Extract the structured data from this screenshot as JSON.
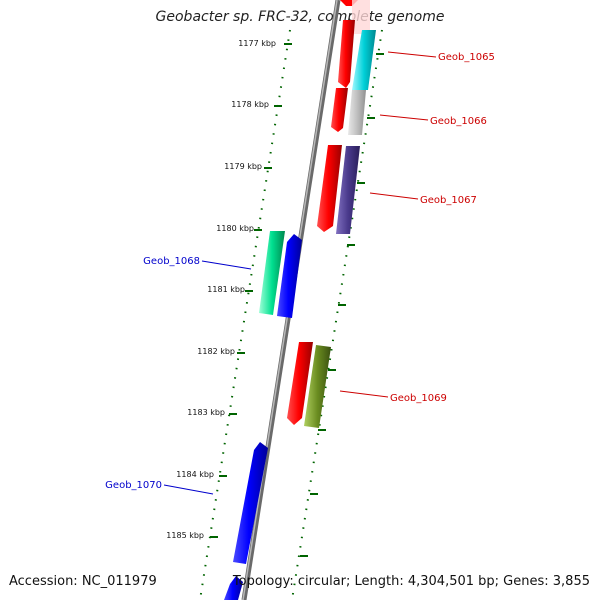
{
  "title": "Geobacter sp. FRC-32, complete genome",
  "footer": {
    "accession": "Accession: NC_011979",
    "topology": "Topology: circular; Length: 4,304,501 bp; Genes: 3,855"
  },
  "ticks": [
    "1177 kbp",
    "1178 kbp",
    "1179 kbp",
    "1180 kbp",
    "1181 kbp",
    "1182 kbp",
    "1183 kbp",
    "1184 kbp",
    "1185 kbp"
  ],
  "genes": [
    {
      "label": "Geob_1065",
      "color": "#cc0000",
      "body": "#00c8d0"
    },
    {
      "label": "Geob_1066",
      "color": "#cc0000",
      "body": "#b8b8b8"
    },
    {
      "label": "Geob_1067",
      "color": "#cc0000",
      "body": "#4a3a8c"
    },
    {
      "label": "Geob_1068",
      "color": "#0000cc",
      "body": "#00e090"
    },
    {
      "label": "Geob_1069",
      "color": "#cc0000",
      "body": "#6a8c20"
    },
    {
      "label": "Geob_1070",
      "color": "#0000cc",
      "body": "#0000ff"
    }
  ],
  "colors": {
    "forward_strand": "#ff0000",
    "reverse_strand": "#0000ff",
    "tick_mark": "#006400",
    "backbone": "#808080"
  }
}
